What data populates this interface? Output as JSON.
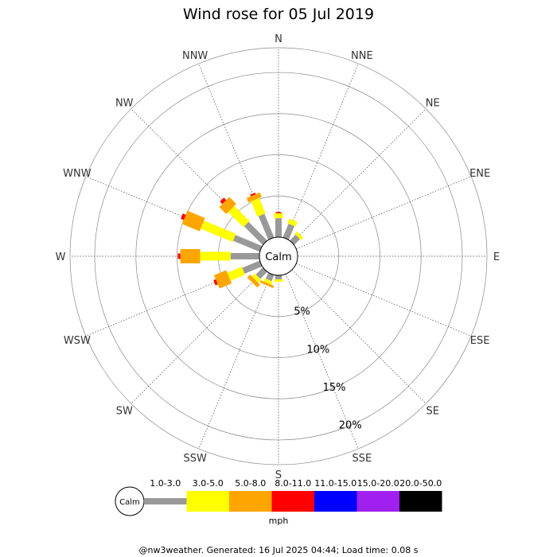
{
  "chart_data": {
    "type": "wind-rose",
    "title": "Wind rose for 05 Jul 2019",
    "calm_label": "Calm",
    "directions": [
      "N",
      "NNE",
      "NE",
      "ENE",
      "E",
      "ESE",
      "SE",
      "SSE",
      "S",
      "SSW",
      "SW",
      "WSW",
      "W",
      "WNW",
      "NW",
      "NNW"
    ],
    "ring_labels": [
      "5%",
      "10%",
      "15%",
      "20%"
    ],
    "ring_values": [
      5,
      10,
      15,
      20
    ],
    "rmax": 23,
    "unit_label": "mph",
    "bins": [
      {
        "label": "1.0-3.0",
        "color": "#999999"
      },
      {
        "label": "3.0-5.0",
        "color": "#ffff00"
      },
      {
        "label": "5.0-8.0",
        "color": "#ffa500"
      },
      {
        "label": "8.0-11.0",
        "color": "#ff0000"
      },
      {
        "label": "11.0-15.0",
        "color": "#0000ff"
      },
      {
        "label": "15.0-20.0",
        "color": "#a020f0"
      },
      {
        "label": "20.0-50.0",
        "color": "#000000"
      }
    ],
    "series": [
      {
        "direction": "N",
        "segments": [
          2.3,
          0.6,
          0.0,
          0.15
        ]
      },
      {
        "direction": "NNE",
        "segments": [
          1.8,
          0.6,
          0.0,
          0.0
        ]
      },
      {
        "direction": "NE",
        "segments": [
          1.0,
          0.4,
          0.0,
          0.0
        ]
      },
      {
        "direction": "ENE",
        "segments": [
          0.0,
          0.0,
          0.0,
          0.0
        ]
      },
      {
        "direction": "E",
        "segments": [
          0.0,
          0.0,
          0.0,
          0.0
        ]
      },
      {
        "direction": "ESE",
        "segments": [
          0.0,
          0.0,
          0.0,
          0.0
        ]
      },
      {
        "direction": "SE",
        "segments": [
          0.0,
          0.0,
          0.0,
          0.0
        ]
      },
      {
        "direction": "SSE",
        "segments": [
          0.0,
          0.0,
          0.0,
          0.0
        ]
      },
      {
        "direction": "S",
        "segments": [
          0.5,
          0.3,
          0.0,
          0.0
        ]
      },
      {
        "direction": "SSW",
        "segments": [
          0.8,
          0.4,
          0.3,
          0.0
        ]
      },
      {
        "direction": "SW",
        "segments": [
          1.2,
          0.5,
          0.5,
          0.0
        ]
      },
      {
        "direction": "WSW",
        "segments": [
          2.3,
          1.9,
          1.6,
          0.3
        ]
      },
      {
        "direction": "W",
        "segments": [
          3.5,
          3.7,
          2.4,
          0.3
        ]
      },
      {
        "direction": "WNW",
        "segments": [
          3.5,
          4.2,
          2.3,
          0.4
        ]
      },
      {
        "direction": "NW",
        "segments": [
          3.2,
          2.6,
          1.2,
          0.4
        ]
      },
      {
        "direction": "NNW",
        "segments": [
          3.1,
          2.0,
          0.6,
          0.2
        ]
      }
    ]
  },
  "footer": "@nw3weather. Generated: 16 Jul 2025 04:44; Load time: 0.08 s"
}
